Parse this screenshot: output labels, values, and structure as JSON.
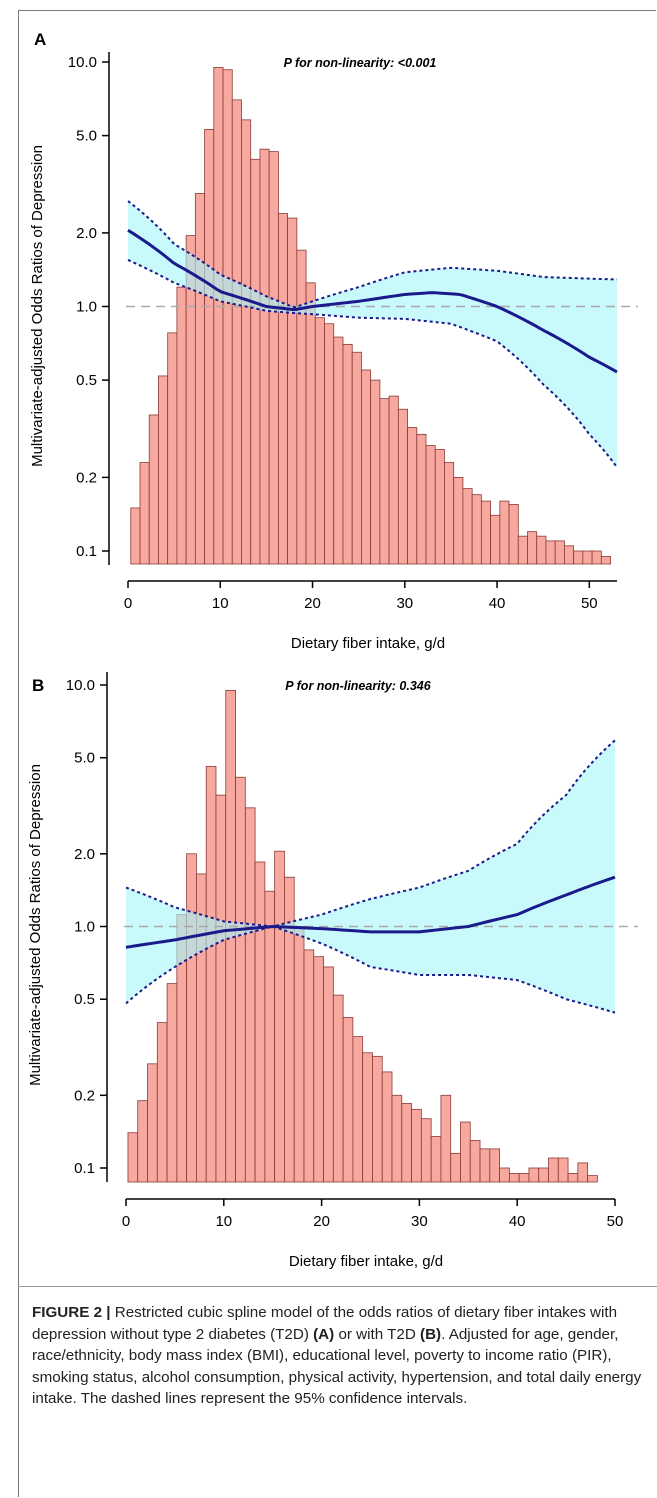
{
  "figure": {
    "caption": {
      "label": "FIGURE 2 |",
      "part1": " Restricted cubic spline model of the odds ratios of dietary fiber intakes with depression without type 2 diabetes (T2D) ",
      "bold_a": "(A)",
      "part2": " or with T2D ",
      "bold_b": "(B)",
      "part3": ". Adjusted for age, gender, race/ethnicity, body mass index (BMI), educational level, poverty to income ratio (PIR), smoking status, alcohol consumption, physical activity, hypertension, and total daily energy intake. The dashed lines represent the 95% confidence intervals."
    }
  },
  "chart_data": [
    {
      "panel": "A",
      "type": "line",
      "annotation": "P for non-linearity: <0.001",
      "xlabel": "Dietary fiber intake, g/d",
      "ylabel": "Multivariate-adjusted Odds Ratios of Depression",
      "xlim": [
        0,
        53
      ],
      "ylim": [
        0.1,
        10.0
      ],
      "yscale": "log",
      "xticks": [
        0,
        10,
        20,
        30,
        40,
        50
      ],
      "yticks": [
        0.1,
        0.2,
        0.5,
        1.0,
        2.0,
        5.0,
        10.0
      ],
      "ytick_labels": [
        "0.1",
        "0.2",
        "0.5",
        "1.0",
        "2.0",
        "5.0",
        "10.0"
      ],
      "reference_line": 1.0,
      "colors": {
        "bars": "#f7a9a0",
        "bar_edge": "#8a3a35",
        "ci_fill": "#a6f6f8",
        "curve": "#1a1a8c",
        "reference": "#aaaaaa"
      },
      "histogram": {
        "bin_width": 1,
        "bin_start": 0.3,
        "heights_on_or_axis": [
          0.15,
          0.23,
          0.36,
          0.52,
          0.78,
          1.2,
          1.95,
          2.9,
          5.3,
          9.5,
          9.3,
          7.0,
          5.8,
          4.0,
          4.4,
          4.3,
          2.4,
          2.3,
          1.7,
          1.25,
          0.9,
          0.85,
          0.75,
          0.7,
          0.65,
          0.55,
          0.5,
          0.42,
          0.43,
          0.38,
          0.32,
          0.3,
          0.27,
          0.26,
          0.23,
          0.2,
          0.18,
          0.17,
          0.16,
          0.14,
          0.16,
          0.155,
          0.115,
          0.12,
          0.115,
          0.11,
          0.11,
          0.105,
          0.1,
          0.1,
          0.1,
          0.095
        ]
      },
      "series": [
        {
          "role": "estimate",
          "x": [
            0,
            5,
            10,
            15,
            18,
            20,
            25,
            30,
            33,
            36,
            40,
            45,
            50,
            53
          ],
          "y": [
            2.05,
            1.5,
            1.15,
            1.0,
            0.97,
            1.0,
            1.05,
            1.12,
            1.14,
            1.12,
            1.0,
            0.8,
            0.62,
            0.54
          ]
        },
        {
          "role": "upper_95ci",
          "x": [
            0,
            5,
            10,
            15,
            18,
            20,
            25,
            30,
            35,
            40,
            45,
            50,
            53
          ],
          "y": [
            2.7,
            1.8,
            1.35,
            1.1,
            0.99,
            1.05,
            1.2,
            1.38,
            1.44,
            1.4,
            1.32,
            1.3,
            1.29
          ]
        },
        {
          "role": "lower_95ci",
          "x": [
            0,
            5,
            10,
            15,
            18,
            20,
            25,
            30,
            35,
            40,
            45,
            50,
            53
          ],
          "y": [
            1.55,
            1.25,
            1.05,
            0.96,
            0.94,
            0.93,
            0.9,
            0.89,
            0.85,
            0.72,
            0.48,
            0.3,
            0.22
          ]
        }
      ]
    },
    {
      "panel": "B",
      "type": "line",
      "annotation": "P for non-linearity: 0.346",
      "xlabel": "Dietary fiber intake, g/d",
      "ylabel": "Multivariate-adjusted Odds Ratios of Depression",
      "xlim": [
        0,
        50
      ],
      "ylim": [
        0.1,
        10.0
      ],
      "yscale": "log",
      "xticks": [
        0,
        10,
        20,
        30,
        40,
        50
      ],
      "yticks": [
        0.1,
        0.2,
        0.5,
        1.0,
        2.0,
        5.0,
        10.0
      ],
      "ytick_labels": [
        "0.1",
        "0.2",
        "0.5",
        "1.0",
        "2.0",
        "5.0",
        "10.0"
      ],
      "reference_line": 1.0,
      "colors": {
        "bars": "#f7a9a0",
        "bar_edge": "#8a3a35",
        "ci_fill": "#a6f6f8",
        "curve": "#1a1a8c",
        "reference": "#aaaaaa"
      },
      "histogram": {
        "bin_width": 1,
        "bin_start": 0.2,
        "heights_on_or_axis": [
          0.14,
          0.19,
          0.27,
          0.4,
          0.58,
          1.12,
          2.0,
          1.65,
          4.6,
          3.5,
          9.5,
          4.15,
          3.1,
          1.85,
          1.4,
          2.05,
          1.6,
          1.0,
          0.8,
          0.75,
          0.68,
          0.52,
          0.42,
          0.35,
          0.3,
          0.29,
          0.25,
          0.2,
          0.185,
          0.175,
          0.16,
          0.135,
          0.2,
          0.115,
          0.155,
          0.13,
          0.12,
          0.12,
          0.1,
          0.095,
          0.095,
          0.1,
          0.1,
          0.11,
          0.11,
          0.095,
          0.105,
          0.093
        ]
      },
      "series": [
        {
          "role": "estimate",
          "x": [
            0,
            5,
            10,
            15,
            20,
            25,
            30,
            35,
            40,
            45,
            50
          ],
          "y": [
            0.82,
            0.88,
            0.96,
            1.0,
            0.98,
            0.95,
            0.95,
            1.0,
            1.12,
            1.35,
            1.6
          ]
        },
        {
          "role": "upper_95ci",
          "x": [
            0,
            5,
            10,
            15,
            20,
            25,
            30,
            35,
            40,
            45,
            50
          ],
          "y": [
            1.45,
            1.2,
            1.05,
            1.0,
            1.12,
            1.3,
            1.45,
            1.7,
            2.2,
            3.5,
            5.9
          ]
        },
        {
          "role": "lower_95ci",
          "x": [
            0,
            5,
            10,
            15,
            20,
            25,
            30,
            35,
            40,
            45,
            50
          ],
          "y": [
            0.48,
            0.68,
            0.88,
            1.0,
            0.85,
            0.68,
            0.63,
            0.63,
            0.6,
            0.5,
            0.44
          ]
        }
      ]
    }
  ]
}
